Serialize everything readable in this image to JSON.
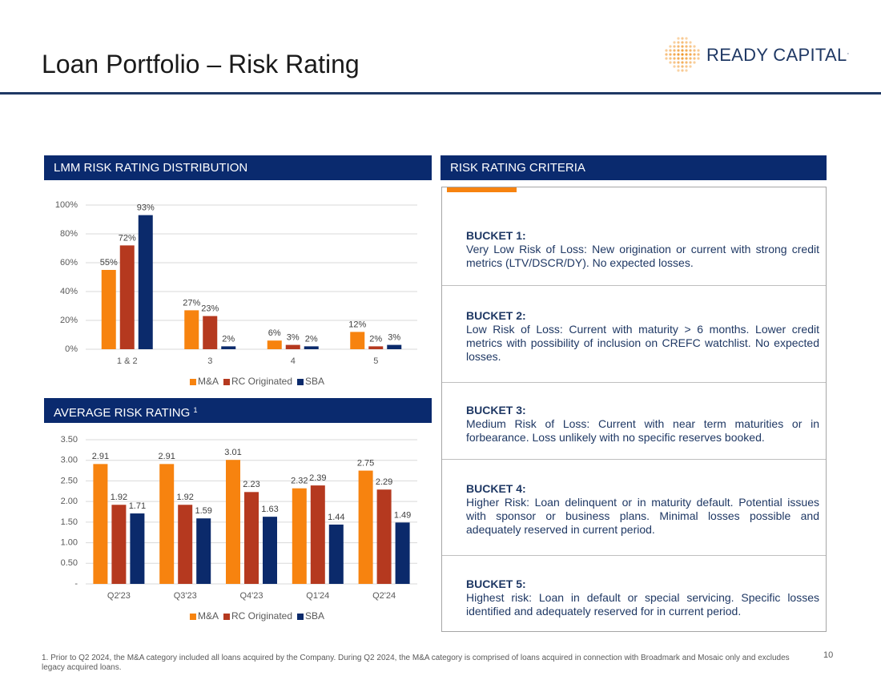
{
  "header": {
    "title": "Loan Portfolio – Risk Rating",
    "logo": "READY CAPITAL",
    "logo_mark": "."
  },
  "chart_data": [
    {
      "type": "bar",
      "title": "LMM RISK RATING DISTRIBUTION",
      "categories": [
        "1 & 2",
        "3",
        "4",
        "5"
      ],
      "series": [
        {
          "name": "M&A",
          "color": "#f7830f",
          "values": [
            55,
            27,
            6,
            12
          ],
          "value_labels": [
            "55%",
            "27%",
            "6%",
            "12%"
          ]
        },
        {
          "name": "RC Originated",
          "color": "#b5391f",
          "values": [
            72,
            23,
            3,
            2
          ],
          "value_labels": [
            "72%",
            "23%",
            "3%",
            "2%"
          ]
        },
        {
          "name": "SBA",
          "color": "#0b2a6b",
          "values": [
            93,
            2,
            2,
            3
          ],
          "value_labels": [
            "93%",
            "2%",
            "2%",
            "3%"
          ]
        }
      ],
      "ylim": [
        0,
        100
      ],
      "yticks": [
        {
          "value": 0,
          "label": "0%"
        },
        {
          "value": 20,
          "label": "20%"
        },
        {
          "value": 40,
          "label": "40%"
        },
        {
          "value": 60,
          "label": "60%"
        },
        {
          "value": 80,
          "label": "80%"
        },
        {
          "value": 100,
          "label": "100%"
        }
      ],
      "grid": true,
      "legend": "bottom"
    },
    {
      "type": "bar",
      "title": "AVERAGE RISK RATING",
      "title_note": "1",
      "categories": [
        "Q2'23",
        "Q3'23",
        "Q4'23",
        "Q1'24",
        "Q2'24"
      ],
      "series": [
        {
          "name": "M&A",
          "color": "#f7830f",
          "values": [
            2.91,
            2.91,
            3.01,
            2.32,
            2.75
          ]
        },
        {
          "name": "RC Originated",
          "color": "#b5391f",
          "values": [
            1.92,
            1.92,
            2.23,
            2.39,
            2.29
          ]
        },
        {
          "name": "SBA",
          "color": "#0b2a6b",
          "values": [
            1.71,
            1.59,
            1.63,
            1.44,
            1.49
          ]
        }
      ],
      "ylim": [
        0,
        3.5
      ],
      "yticks": [
        {
          "value": 0,
          "label": "-"
        },
        {
          "value": 0.5,
          "label": "0.50"
        },
        {
          "value": 1,
          "label": "1.00"
        },
        {
          "value": 1.5,
          "label": "1.50"
        },
        {
          "value": 2,
          "label": "2.00"
        },
        {
          "value": 2.5,
          "label": "2.50"
        },
        {
          "value": 3,
          "label": "3.00"
        },
        {
          "value": 3.5,
          "label": "3.50"
        }
      ],
      "grid": true,
      "legend": "bottom"
    }
  ],
  "criteria": {
    "title": "RISK RATING CRITERIA",
    "buckets": [
      {
        "title": "BUCKET 1:",
        "text": "Very Low Risk of Loss: New origination or current with strong credit metrics (LTV/DSCR/DY). No expected losses."
      },
      {
        "title": "BUCKET 2:",
        "text": "Low Risk of Loss: Current with maturity > 6 months. Lower credit metrics with possibility of inclusion on CREFC watchlist. No expected losses."
      },
      {
        "title": "BUCKET 3:",
        "text": "Medium Risk of Loss: Current with near term maturities or in forbearance. Loss unlikely with no specific reserves booked."
      },
      {
        "title": "BUCKET 4:",
        "text": "Higher Risk: Loan delinquent or in maturity default. Potential issues with sponsor or business plans. Minimal losses possible and adequately reserved in current period."
      },
      {
        "title": "BUCKET 5:",
        "text": "Highest risk: Loan in default or special servicing. Specific losses identified and adequately reserved for in current period."
      }
    ]
  },
  "footnote": "1. Prior to Q2 2024, the M&A category included all loans acquired by the Company. During Q2 2024, the M&A category is comprised of loans acquired in connection with Broadmark and Mosaic only and excludes legacy acquired loans.",
  "page_number": "10"
}
